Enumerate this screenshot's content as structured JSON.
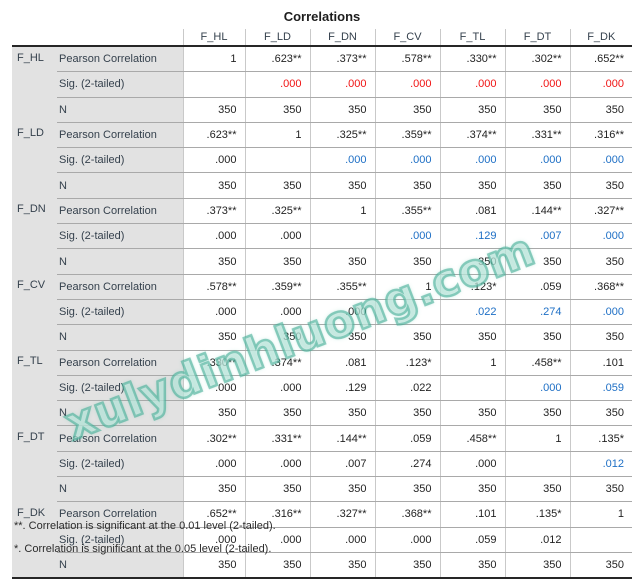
{
  "title": "Correlations",
  "table": {
    "columns": [
      "F_HL",
      "F_LD",
      "F_DN",
      "F_CV",
      "F_TL",
      "F_DT",
      "F_DK"
    ],
    "stat_labels": {
      "pearson": "Pearson Correlation",
      "sig": "Sig. (2-tailed)",
      "n": "N"
    },
    "groups": [
      {
        "variable": "F_HL",
        "pearson": [
          "1",
          ".623**",
          ".373**",
          ".578**",
          ".330**",
          ".302**",
          ".652**"
        ],
        "sig": [
          "",
          ".000",
          ".000",
          ".000",
          ".000",
          ".000",
          ".000"
        ],
        "sig_colors": [
          "",
          "red",
          "red",
          "red",
          "red",
          "red",
          "red"
        ],
        "n": [
          "350",
          "350",
          "350",
          "350",
          "350",
          "350",
          "350"
        ]
      },
      {
        "variable": "F_LD",
        "pearson": [
          ".623**",
          "1",
          ".325**",
          ".359**",
          ".374**",
          ".331**",
          ".316**"
        ],
        "sig": [
          ".000",
          "",
          ".000",
          ".000",
          ".000",
          ".000",
          ".000"
        ],
        "sig_colors": [
          "black",
          "",
          "blue",
          "blue",
          "blue",
          "blue",
          "blue"
        ],
        "n": [
          "350",
          "350",
          "350",
          "350",
          "350",
          "350",
          "350"
        ]
      },
      {
        "variable": "F_DN",
        "pearson": [
          ".373**",
          ".325**",
          "1",
          ".355**",
          ".081",
          ".144**",
          ".327**"
        ],
        "sig": [
          ".000",
          ".000",
          "",
          ".000",
          ".129",
          ".007",
          ".000"
        ],
        "sig_colors": [
          "black",
          "black",
          "",
          "blue",
          "blue",
          "blue",
          "blue"
        ],
        "n": [
          "350",
          "350",
          "350",
          "350",
          "350",
          "350",
          "350"
        ]
      },
      {
        "variable": "F_CV",
        "pearson": [
          ".578**",
          ".359**",
          ".355**",
          "1",
          ".123*",
          ".059",
          ".368**"
        ],
        "sig": [
          ".000",
          ".000",
          ".000",
          "",
          ".022",
          ".274",
          ".000"
        ],
        "sig_colors": [
          "black",
          "black",
          "black",
          "",
          "blue",
          "blue",
          "blue"
        ],
        "n": [
          "350",
          "350",
          "350",
          "350",
          "350",
          "350",
          "350"
        ]
      },
      {
        "variable": "F_TL",
        "pearson": [
          ".330**",
          ".374**",
          ".081",
          ".123*",
          "1",
          ".458**",
          ".101"
        ],
        "sig": [
          ".000",
          ".000",
          ".129",
          ".022",
          "",
          ".000",
          ".059"
        ],
        "sig_colors": [
          "black",
          "black",
          "black",
          "black",
          "",
          "blue",
          "blue"
        ],
        "n": [
          "350",
          "350",
          "350",
          "350",
          "350",
          "350",
          "350"
        ]
      },
      {
        "variable": "F_DT",
        "pearson": [
          ".302**",
          ".331**",
          ".144**",
          ".059",
          ".458**",
          "1",
          ".135*"
        ],
        "sig": [
          ".000",
          ".000",
          ".007",
          ".274",
          ".000",
          "",
          ".012"
        ],
        "sig_colors": [
          "black",
          "black",
          "black",
          "black",
          "black",
          "",
          "blue"
        ],
        "n": [
          "350",
          "350",
          "350",
          "350",
          "350",
          "350",
          "350"
        ]
      },
      {
        "variable": "F_DK",
        "pearson": [
          ".652**",
          ".316**",
          ".327**",
          ".368**",
          ".101",
          ".135*",
          "1"
        ],
        "sig": [
          ".000",
          ".000",
          ".000",
          ".000",
          ".059",
          ".012",
          ""
        ],
        "sig_colors": [
          "black",
          "black",
          "black",
          "black",
          "black",
          "black",
          ""
        ],
        "n": [
          "350",
          "350",
          "350",
          "350",
          "350",
          "350",
          "350"
        ]
      }
    ]
  },
  "footnotes": [
    "**. Correlation is significant at the 0.01 level (2-tailed).",
    "*. Correlation is significant at the 0.05 level (2-tailed)."
  ],
  "watermark": {
    "text": "xulydinhluong.com"
  },
  "colors": {
    "sig_red": "#f01414",
    "sig_blue": "#1e6fc5",
    "value_black": "#232323",
    "label_slate": "#35414d",
    "grid_line": "#a9a9a9",
    "column_separator": "#c9c9c9",
    "stub_background": "#e2e2e2",
    "heavy_rule": "#262626",
    "watermark_teal": "#40ac94"
  }
}
